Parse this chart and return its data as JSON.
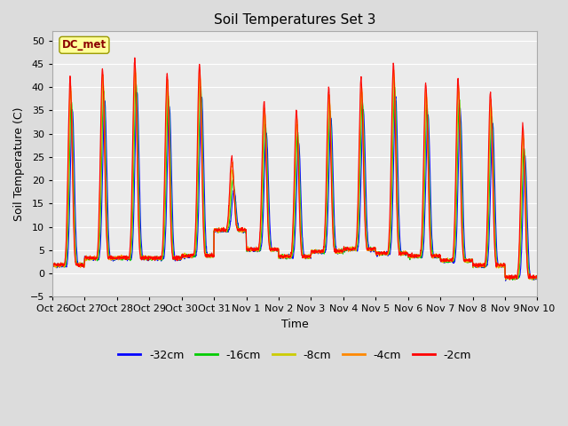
{
  "title": "Soil Temperatures Set 3",
  "xlabel": "Time",
  "ylabel": "Soil Temperature (C)",
  "ylim": [
    -5,
    52
  ],
  "yticks": [
    -5,
    0,
    5,
    10,
    15,
    20,
    25,
    30,
    35,
    40,
    45,
    50
  ],
  "bg_color": "#dcdcdc",
  "plot_bg": "#ebebeb",
  "annotation": "DC_met",
  "annotation_color": "#8b0000",
  "annotation_bg": "#ffff99",
  "line_colors": {
    "-32cm": "#0000ff",
    "-16cm": "#00cc00",
    "-8cm": "#cccc00",
    "-4cm": "#ff8800",
    "-2cm": "#ff0000"
  },
  "x_tick_labels": [
    "Oct 26",
    "Oct 27",
    "Oct 28",
    "Oct 29",
    "Oct 30",
    "Oct 31",
    "Nov 1",
    "Nov 2",
    "Nov 3",
    "Nov 4",
    "Nov 5",
    "Nov 6",
    "Nov 7",
    "Nov 8",
    "Nov 9",
    "Nov 10"
  ],
  "n_days": 15,
  "pts_per_day": 144
}
